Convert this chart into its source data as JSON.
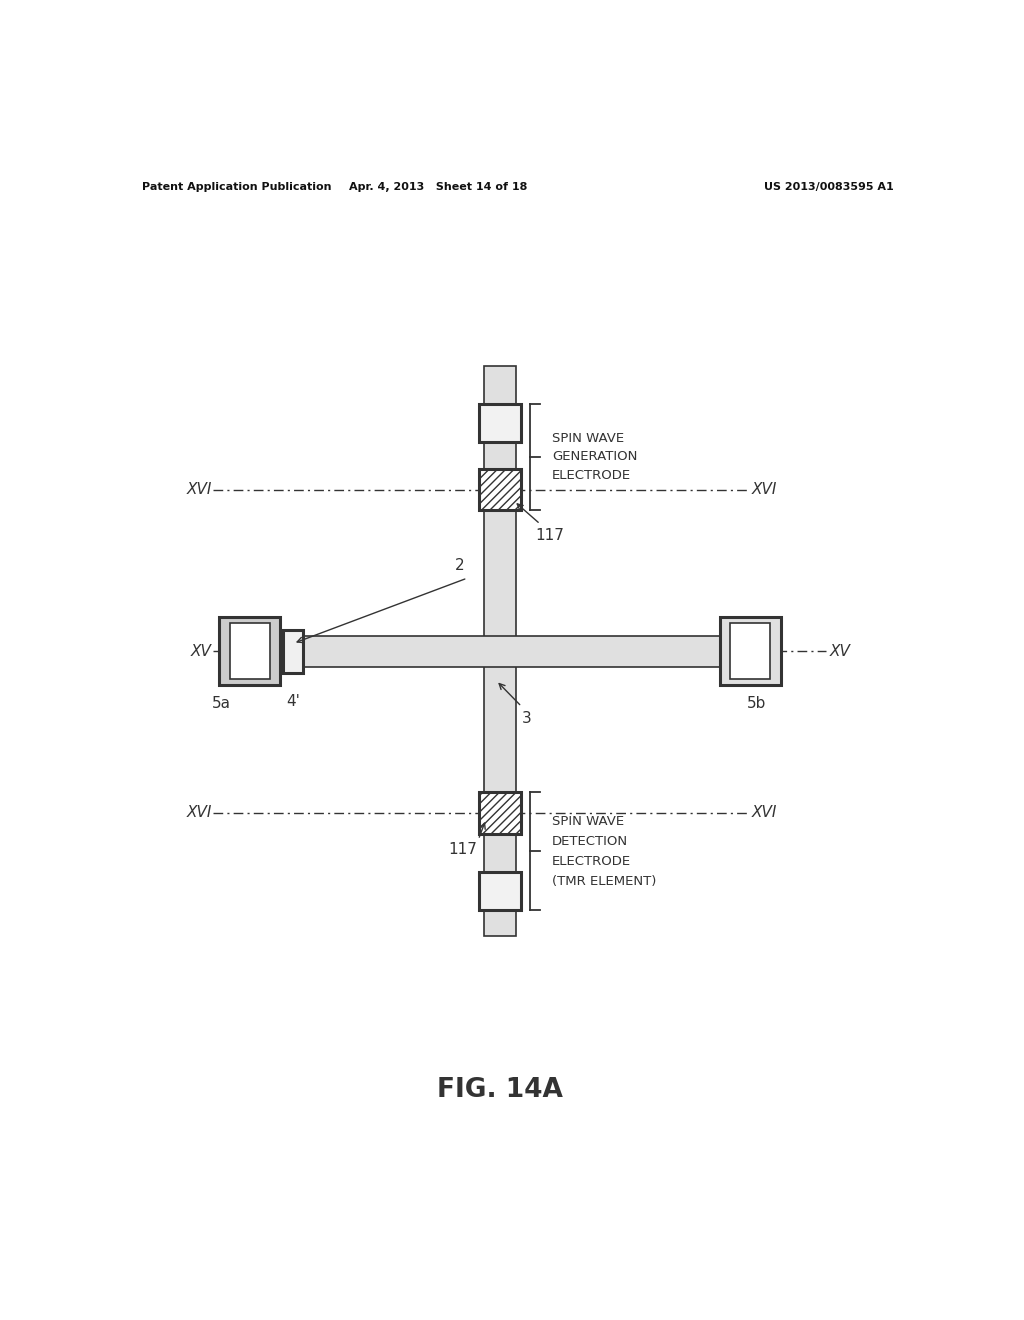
{
  "bg_color": "#ffffff",
  "header_left": "Patent Application Publication",
  "header_mid": "Apr. 4, 2013   Sheet 14 of 18",
  "header_right": "US 2013/0083595 A1",
  "figure_label": "FIG. 14A",
  "label_spin_wave_gen": [
    "SPIN WAVE",
    "GENERATION",
    "ELECTRODE"
  ],
  "label_spin_wave_det": [
    "SPIN WAVE",
    "DETECTION",
    "ELECTRODE",
    "(TMR ELEMENT)"
  ],
  "label_117_top": "117",
  "label_117_bot": "117",
  "label_xv_left": "XV",
  "label_xv_right": "XV",
  "label_xvi_top_left": "XVI",
  "label_xvi_top_right": "XVI",
  "label_xvi_bot_left": "XVI",
  "label_xvi_bot_right": "XVI",
  "label_2": "2",
  "label_3": "3",
  "label_4p": "4'",
  "label_5a": "5a",
  "label_5b": "5b",
  "line_color": "#333333"
}
